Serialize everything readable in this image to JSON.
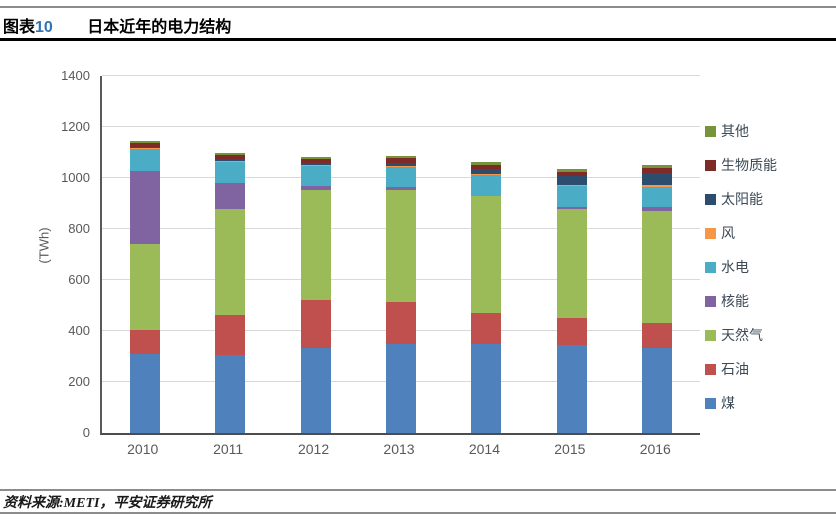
{
  "header": {
    "tag_prefix": "图表",
    "tag_number": "10",
    "title": "日本近年的电力结构",
    "tag_number_color": "#2e74b5"
  },
  "footer": {
    "source_text": "资料来源:METI，平安证券研究所"
  },
  "chart_data": {
    "type": "bar",
    "stacked": true,
    "title": "",
    "xlabel": "",
    "ylabel": "(TWh)",
    "ylim": [
      0,
      1400
    ],
    "ytick_step": 200,
    "grid": true,
    "legend_position": "right",
    "legend_order": "top-to-bottom is reverse of stacking order",
    "categories": [
      "2010",
      "2011",
      "2012",
      "2013",
      "2014",
      "2015",
      "2016"
    ],
    "series": [
      {
        "name": "煤",
        "color": "#4f81bd",
        "values": [
          310,
          304,
          333,
          350,
          350,
          345,
          333
        ]
      },
      {
        "name": "石油",
        "color": "#c0504d",
        "values": [
          93,
          160,
          188,
          163,
          120,
          105,
          98
        ]
      },
      {
        "name": "天然气",
        "color": "#9bbb59",
        "values": [
          340,
          415,
          432,
          441,
          458,
          428,
          438
        ]
      },
      {
        "name": "核能",
        "color": "#8064a2",
        "values": [
          285,
          102,
          16,
          9,
          0,
          9,
          17
        ]
      },
      {
        "name": "水电",
        "color": "#4bacc6",
        "values": [
          85,
          82,
          78,
          79,
          82,
          80,
          80
        ]
      },
      {
        "name": "风",
        "color": "#f79646",
        "values": [
          4,
          5,
          5,
          5,
          5,
          6,
          7
        ]
      },
      {
        "name": "太阳能",
        "color": "#2c4d6e",
        "values": [
          4,
          5,
          7,
          13,
          20,
          34,
          48
        ]
      },
      {
        "name": "生物质能",
        "color": "#7e2a27",
        "values": [
          16,
          16,
          16,
          18,
          17,
          18,
          20
        ]
      },
      {
        "name": "其他",
        "color": "#77933c",
        "values": [
          8,
          8,
          8,
          8,
          9,
          10,
          10
        ]
      }
    ],
    "axis_colors": {
      "tick_text": "#595959",
      "grid": "#d9d9d9",
      "axis_line": "#4d4d4d"
    }
  }
}
